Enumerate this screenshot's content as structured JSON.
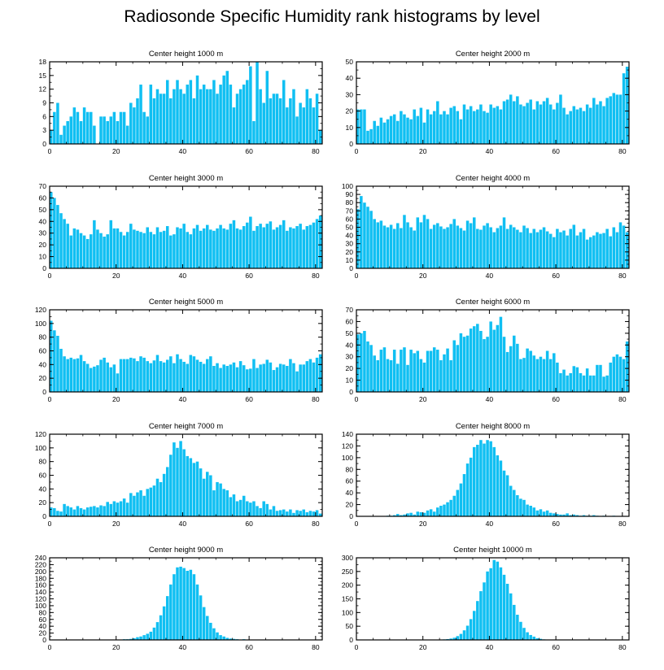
{
  "title": "Radiosonde Specific Humidity rank histograms by level",
  "colors": {
    "bar": "#10bff2",
    "axis": "#000000"
  },
  "chart_data": [
    {
      "type": "bar",
      "title": "Center height 1000 m",
      "xlim": [
        0,
        82
      ],
      "xticks": [
        0,
        20,
        40,
        60,
        80
      ],
      "ylim": [
        0,
        18
      ],
      "yticks": [
        0,
        3,
        6,
        9,
        12,
        15,
        18
      ],
      "values": [
        3,
        7,
        9,
        2,
        4,
        5,
        6,
        8,
        7,
        5,
        8,
        7,
        7,
        4,
        0,
        6,
        6,
        5,
        6,
        7,
        5,
        7,
        7,
        4,
        9,
        8,
        10,
        13,
        7,
        6,
        13,
        10,
        12,
        11,
        11,
        14,
        10,
        12,
        14,
        12,
        11,
        13,
        14,
        10,
        15,
        12,
        13,
        12,
        12,
        14,
        11,
        13,
        15,
        16,
        13,
        8,
        11,
        12,
        13,
        14,
        17,
        5,
        18,
        12,
        9,
        16,
        10,
        11,
        11,
        10,
        14,
        8,
        10,
        12,
        6,
        9,
        8,
        12,
        10,
        8,
        11,
        3
      ]
    },
    {
      "type": "bar",
      "title": "Center height 2000 m",
      "xlim": [
        0,
        82
      ],
      "xticks": [
        0,
        20,
        40,
        60,
        80
      ],
      "ylim": [
        0,
        50
      ],
      "yticks": [
        0,
        10,
        20,
        30,
        40,
        50
      ],
      "values": [
        21,
        21,
        21,
        8,
        9,
        14,
        11,
        16,
        13,
        15,
        17,
        18,
        14,
        20,
        18,
        16,
        15,
        21,
        17,
        22,
        13,
        21,
        18,
        20,
        26,
        18,
        20,
        18,
        22,
        23,
        20,
        15,
        24,
        21,
        23,
        20,
        21,
        24,
        20,
        19,
        24,
        22,
        23,
        21,
        26,
        27,
        30,
        26,
        29,
        24,
        23,
        25,
        27,
        21,
        26,
        24,
        26,
        28,
        24,
        21,
        25,
        30,
        22,
        18,
        20,
        23,
        21,
        22,
        20,
        24,
        22,
        28,
        24,
        26,
        23,
        28,
        29,
        31,
        30,
        30,
        43,
        47
      ]
    },
    {
      "type": "bar",
      "title": "Center height 3000 m",
      "xlim": [
        0,
        82
      ],
      "xticks": [
        0,
        20,
        40,
        60,
        80
      ],
      "ylim": [
        0,
        70
      ],
      "yticks": [
        0,
        10,
        20,
        30,
        40,
        50,
        60,
        70
      ],
      "values": [
        65,
        60,
        54,
        47,
        42,
        38,
        28,
        34,
        33,
        30,
        28,
        25,
        29,
        41,
        33,
        30,
        27,
        29,
        41,
        34,
        34,
        31,
        28,
        31,
        38,
        33,
        32,
        31,
        30,
        35,
        31,
        29,
        35,
        31,
        32,
        36,
        28,
        29,
        35,
        34,
        38,
        31,
        29,
        34,
        37,
        32,
        34,
        37,
        33,
        32,
        34,
        37,
        34,
        33,
        38,
        41,
        34,
        33,
        36,
        39,
        44,
        32,
        36,
        38,
        35,
        38,
        40,
        33,
        35,
        37,
        41,
        32,
        35,
        34,
        36,
        38,
        33,
        36,
        37,
        39,
        42,
        45
      ]
    },
    {
      "type": "bar",
      "title": "Center height 4000 m",
      "xlim": [
        0,
        82
      ],
      "xticks": [
        0,
        20,
        40,
        60,
        80
      ],
      "ylim": [
        0,
        100
      ],
      "yticks": [
        0,
        10,
        20,
        30,
        40,
        50,
        60,
        70,
        80,
        90,
        100
      ],
      "values": [
        72,
        88,
        80,
        75,
        70,
        60,
        56,
        58,
        52,
        50,
        53,
        48,
        55,
        49,
        65,
        56,
        50,
        46,
        62,
        56,
        65,
        60,
        48,
        53,
        55,
        51,
        48,
        50,
        54,
        60,
        52,
        49,
        46,
        58,
        55,
        62,
        48,
        47,
        52,
        55,
        50,
        44,
        49,
        52,
        62,
        48,
        53,
        50,
        47,
        44,
        52,
        49,
        43,
        48,
        44,
        47,
        50,
        45,
        42,
        38,
        48,
        44,
        46,
        40,
        48,
        53,
        40,
        44,
        48,
        35,
        38,
        40,
        44,
        42,
        43,
        48,
        39,
        50,
        44,
        56,
        52,
        44
      ]
    },
    {
      "type": "bar",
      "title": "Center height 5000 m",
      "xlim": [
        0,
        82
      ],
      "xticks": [
        0,
        20,
        40,
        60,
        80
      ],
      "ylim": [
        0,
        120
      ],
      "yticks": [
        0,
        20,
        40,
        60,
        80,
        100,
        120
      ],
      "values": [
        104,
        90,
        82,
        63,
        52,
        48,
        50,
        48,
        49,
        54,
        45,
        41,
        35,
        37,
        39,
        47,
        50,
        43,
        36,
        40,
        27,
        48,
        48,
        48,
        50,
        49,
        45,
        52,
        50,
        45,
        42,
        46,
        54,
        45,
        43,
        47,
        52,
        42,
        55,
        48,
        44,
        41,
        54,
        52,
        47,
        44,
        41,
        48,
        52,
        38,
        42,
        35,
        40,
        38,
        40,
        43,
        36,
        45,
        39,
        33,
        34,
        48,
        35,
        40,
        41,
        47,
        43,
        32,
        36,
        41,
        40,
        38,
        48,
        42,
        30,
        40,
        40,
        45,
        48,
        43,
        50,
        55
      ]
    },
    {
      "type": "bar",
      "title": "Center height 6000 m",
      "xlim": [
        0,
        82
      ],
      "xticks": [
        0,
        20,
        40,
        60,
        80
      ],
      "ylim": [
        0,
        70
      ],
      "yticks": [
        0,
        10,
        20,
        30,
        40,
        50,
        60,
        70
      ],
      "values": [
        49,
        50,
        52,
        43,
        40,
        31,
        27,
        36,
        38,
        28,
        27,
        36,
        24,
        36,
        38,
        23,
        36,
        33,
        35,
        28,
        25,
        35,
        35,
        38,
        36,
        27,
        32,
        37,
        27,
        44,
        40,
        50,
        47,
        48,
        54,
        56,
        58,
        52,
        45,
        47,
        60,
        53,
        57,
        64,
        47,
        34,
        39,
        48,
        41,
        28,
        29,
        37,
        35,
        31,
        28,
        30,
        28,
        35,
        28,
        33,
        25,
        16,
        19,
        14,
        16,
        22,
        21,
        16,
        14,
        20,
        14,
        14,
        23,
        23,
        13,
        14,
        25,
        30,
        32,
        30,
        28,
        43
      ]
    },
    {
      "type": "bar",
      "title": "Center height 7000 m",
      "xlim": [
        0,
        82
      ],
      "xticks": [
        0,
        20,
        40,
        60,
        80
      ],
      "ylim": [
        0,
        120
      ],
      "yticks": [
        0,
        20,
        40,
        60,
        80,
        100,
        120
      ],
      "values": [
        13,
        12,
        8,
        7,
        18,
        15,
        13,
        10,
        15,
        12,
        10,
        13,
        14,
        15,
        13,
        16,
        15,
        21,
        18,
        22,
        20,
        22,
        26,
        20,
        34,
        30,
        35,
        38,
        30,
        40,
        42,
        45,
        55,
        50,
        62,
        72,
        90,
        108,
        100,
        110,
        98,
        88,
        85,
        78,
        80,
        70,
        55,
        65,
        60,
        38,
        50,
        48,
        40,
        38,
        28,
        32,
        22,
        24,
        30,
        22,
        20,
        22,
        15,
        12,
        22,
        18,
        10,
        15,
        8,
        9,
        10,
        7,
        10,
        5,
        9,
        8,
        10,
        6,
        8,
        7,
        9,
        4
      ]
    },
    {
      "type": "bar",
      "title": "Center height 8000 m",
      "xlim": [
        0,
        82
      ],
      "xticks": [
        0,
        20,
        40,
        60,
        80
      ],
      "ylim": [
        0,
        140
      ],
      "yticks": [
        0,
        20,
        40,
        60,
        80,
        100,
        120,
        140
      ],
      "values": [
        0,
        0,
        0,
        0,
        0,
        0,
        0,
        0,
        0,
        1,
        1,
        2,
        4,
        2,
        3,
        5,
        6,
        3,
        8,
        7,
        6,
        10,
        12,
        8,
        15,
        18,
        20,
        24,
        28,
        35,
        45,
        56,
        72,
        90,
        100,
        118,
        122,
        130,
        124,
        130,
        128,
        118,
        104,
        95,
        78,
        70,
        52,
        45,
        36,
        30,
        28,
        20,
        18,
        15,
        10,
        12,
        8,
        10,
        6,
        5,
        4,
        3,
        3,
        5,
        2,
        3,
        2,
        1,
        2,
        1,
        1,
        2,
        1,
        0,
        1,
        0,
        0,
        1,
        0,
        0,
        0,
        0
      ]
    },
    {
      "type": "bar",
      "title": "Center height 9000 m",
      "xlim": [
        0,
        82
      ],
      "xticks": [
        0,
        20,
        40,
        60,
        80
      ],
      "ylim": [
        0,
        240
      ],
      "yticks": [
        0,
        20,
        40,
        60,
        80,
        100,
        120,
        140,
        160,
        180,
        200,
        220,
        240
      ],
      "values": [
        0,
        0,
        0,
        0,
        0,
        0,
        0,
        0,
        0,
        0,
        0,
        0,
        0,
        0,
        0,
        0,
        0,
        0,
        0,
        0,
        1,
        1,
        2,
        2,
        3,
        5,
        8,
        10,
        14,
        18,
        24,
        36,
        52,
        72,
        98,
        128,
        162,
        192,
        212,
        214,
        210,
        202,
        205,
        192,
        162,
        130,
        96,
        70,
        50,
        34,
        22,
        14,
        10,
        6,
        4,
        3,
        2,
        1,
        2,
        1,
        1,
        0,
        0,
        1,
        0,
        0,
        0,
        0,
        0,
        0,
        0,
        0,
        0,
        0,
        0,
        0,
        0,
        0,
        0,
        0,
        0,
        0
      ]
    },
    {
      "type": "bar",
      "title": "Center height 10000 m",
      "xlim": [
        0,
        82
      ],
      "xticks": [
        0,
        20,
        40,
        60,
        80
      ],
      "ylim": [
        0,
        300
      ],
      "yticks": [
        0,
        50,
        100,
        150,
        200,
        250,
        300
      ],
      "values": [
        0,
        0,
        0,
        0,
        0,
        0,
        0,
        0,
        0,
        0,
        0,
        0,
        0,
        0,
        0,
        0,
        0,
        0,
        0,
        0,
        0,
        0,
        0,
        0,
        0,
        1,
        2,
        3,
        5,
        8,
        14,
        22,
        35,
        52,
        76,
        106,
        142,
        178,
        210,
        250,
        262,
        292,
        286,
        265,
        238,
        205,
        170,
        128,
        92,
        66,
        44,
        28,
        18,
        12,
        6,
        4,
        2,
        1,
        1,
        0,
        0,
        0,
        0,
        0,
        0,
        0,
        0,
        0,
        0,
        0,
        0,
        0,
        0,
        0,
        0,
        0,
        0,
        0,
        0,
        0,
        0,
        0
      ]
    }
  ]
}
